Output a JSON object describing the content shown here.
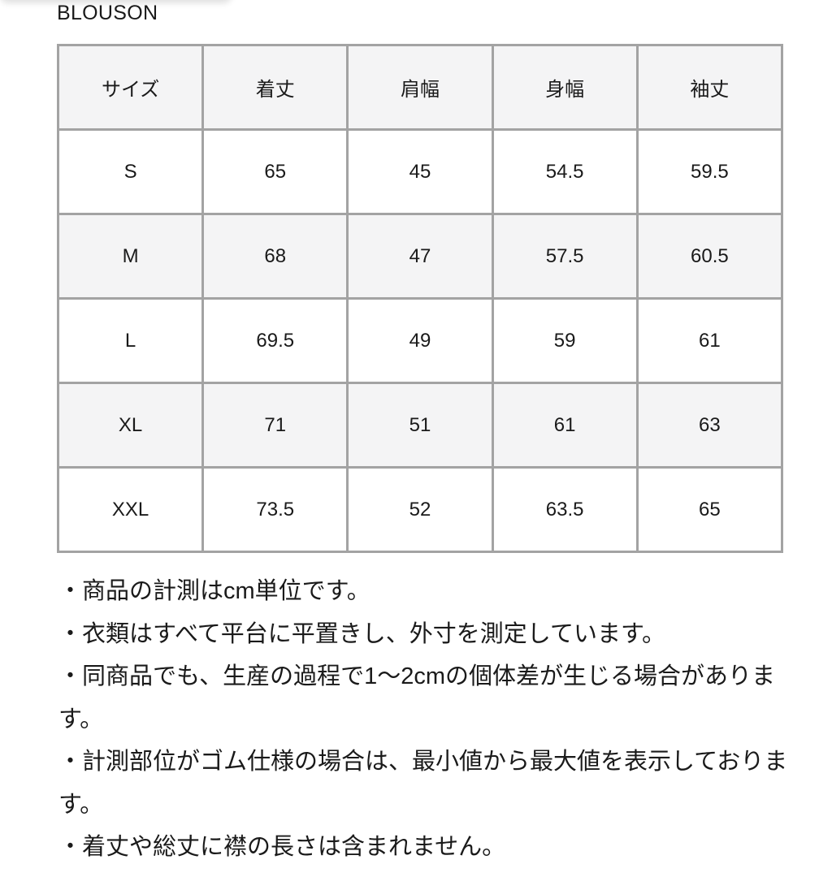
{
  "title": "BLOUSON",
  "table": {
    "headers": [
      "サイズ",
      "着丈",
      "肩幅",
      "身幅",
      "袖丈"
    ],
    "rows": [
      [
        "S",
        "65",
        "45",
        "54.5",
        "59.5"
      ],
      [
        "M",
        "68",
        "47",
        "57.5",
        "60.5"
      ],
      [
        "L",
        "69.5",
        "49",
        "59",
        "61"
      ],
      [
        "XL",
        "71",
        "51",
        "61",
        "63"
      ],
      [
        "XXL",
        "73.5",
        "52",
        "63.5",
        "65"
      ]
    ]
  },
  "notes": [
    "・商品の計測はcm単位です。",
    "・衣類はすべて平台に平置きし、外寸を測定しています。",
    "・同商品でも、生産の過程で1〜2cmの個体差が生じる場合があります。",
    "・計測部位がゴム仕様の場合は、最小値から最大値を表示しております。",
    "・着丈や総丈に襟の長さは含まれません。"
  ]
}
